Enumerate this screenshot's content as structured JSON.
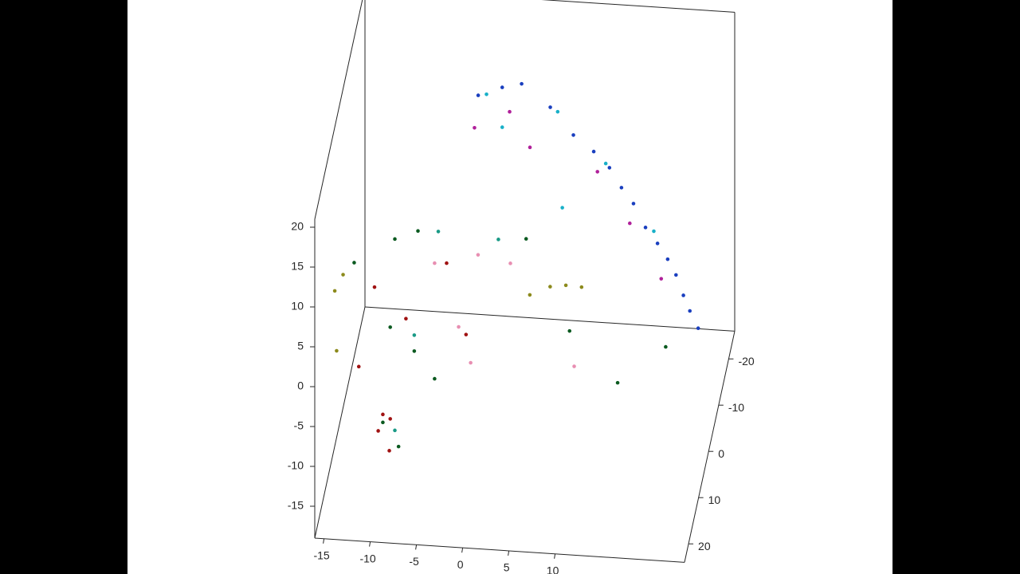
{
  "chart_data": {
    "type": "scatter3d",
    "xlim": [
      -16,
      24
    ],
    "ylim": [
      -26,
      24
    ],
    "zlim": [
      -19,
      21
    ],
    "xticks": [
      -15,
      -10,
      -5,
      0,
      5,
      10
    ],
    "yticks": [
      -20,
      -10,
      0,
      10,
      20
    ],
    "zticks": [
      -15,
      -10,
      -5,
      0,
      5,
      10,
      15,
      20
    ],
    "series": [
      {
        "color": "#1a3fbf",
        "x": [
          -3.1,
          -0.5,
          1.6,
          4.7,
          7.2,
          9.4,
          11.1,
          12.4,
          13.7,
          15.0,
          16.3,
          17.4,
          18.3,
          19.1,
          19.8,
          20.7
        ],
        "y": [
          -20,
          -20,
          -20,
          -20,
          -20,
          -20,
          -20,
          -20,
          -20,
          -20,
          -20,
          -20,
          -20,
          -20,
          -20,
          -20
        ],
        "z": [
          12.0,
          13.2,
          13.8,
          11.1,
          7.8,
          5.9,
          4.0,
          1.6,
          -0.3,
          -3.2,
          -5.1,
          -7.0,
          -8.9,
          -11.4,
          -13.3,
          -15.4
        ]
      },
      {
        "color": "#b0209a",
        "x": [
          -3.5,
          0.3,
          9.8,
          13.3,
          16.7,
          2.5
        ],
        "y": [
          -20,
          -20,
          -20,
          -20,
          -20,
          -20
        ],
        "z": [
          7.9,
          10.2,
          3.4,
          -2.8,
          -9.5,
          5.9
        ]
      },
      {
        "color": "#18b0c8",
        "x": [
          -2.2,
          5.5,
          10.7,
          15.9,
          6.0,
          -0.5
        ],
        "y": [
          -20,
          -20,
          -20,
          -20,
          -20,
          -20
        ],
        "z": [
          12.2,
          10.6,
          4.5,
          -3.6,
          -1.4,
          8.2
        ]
      },
      {
        "color": "#0b5a20",
        "x": [
          -9.4,
          -6.9,
          -13.8,
          -9.9,
          -7.3,
          -10.7,
          -9.0,
          -5.1,
          4.8,
          19.9,
          14.7,
          9.5
        ],
        "y": [
          5,
          5,
          5,
          5,
          5,
          5,
          5,
          5,
          5,
          5,
          5,
          5
        ],
        "z": [
          8.0,
          9.2,
          4.7,
          -3.1,
          -5.9,
          -15.1,
          -18.0,
          -9.2,
          9.1,
          -3.3,
          -8.2,
          -2.1
        ]
      },
      {
        "color": "#a01212",
        "x": [
          -10.7,
          -9.9,
          -11.2,
          -10.0,
          -8.2,
          -11.6,
          -3.8,
          -1.7,
          -13.3
        ],
        "y": [
          5,
          5,
          5,
          5,
          5,
          5,
          5,
          5,
          5
        ],
        "z": [
          -14.1,
          -14.6,
          -16.2,
          -18.6,
          -1.9,
          1.8,
          5.4,
          -3.4,
          -8.3
        ]
      },
      {
        "color": "#8c8a1c",
        "x": [
          -15.9,
          -15.0,
          7.4,
          9.1,
          10.8,
          5.2,
          -15.7
        ],
        "y": [
          5,
          5,
          5,
          5,
          5,
          5,
          5
        ],
        "z": [
          1.0,
          3.1,
          3.3,
          3.6,
          3.5,
          2.1,
          -6.5
        ]
      },
      {
        "color": "#e88fb2",
        "x": [
          -5.1,
          -0.4,
          -2.5,
          -1.2,
          3.1,
          10.0
        ],
        "y": [
          5,
          5,
          5,
          5,
          5,
          5
        ],
        "z": [
          5.3,
          6.7,
          -2.5,
          -6.9,
          5.9,
          -6.5
        ]
      },
      {
        "color": "#1a9a86",
        "x": [
          -7.3,
          -9.4,
          -4.7,
          1.8
        ],
        "y": [
          5,
          5,
          5,
          5
        ],
        "z": [
          -3.9,
          -16.0,
          9.3,
          8.8
        ]
      }
    ]
  }
}
